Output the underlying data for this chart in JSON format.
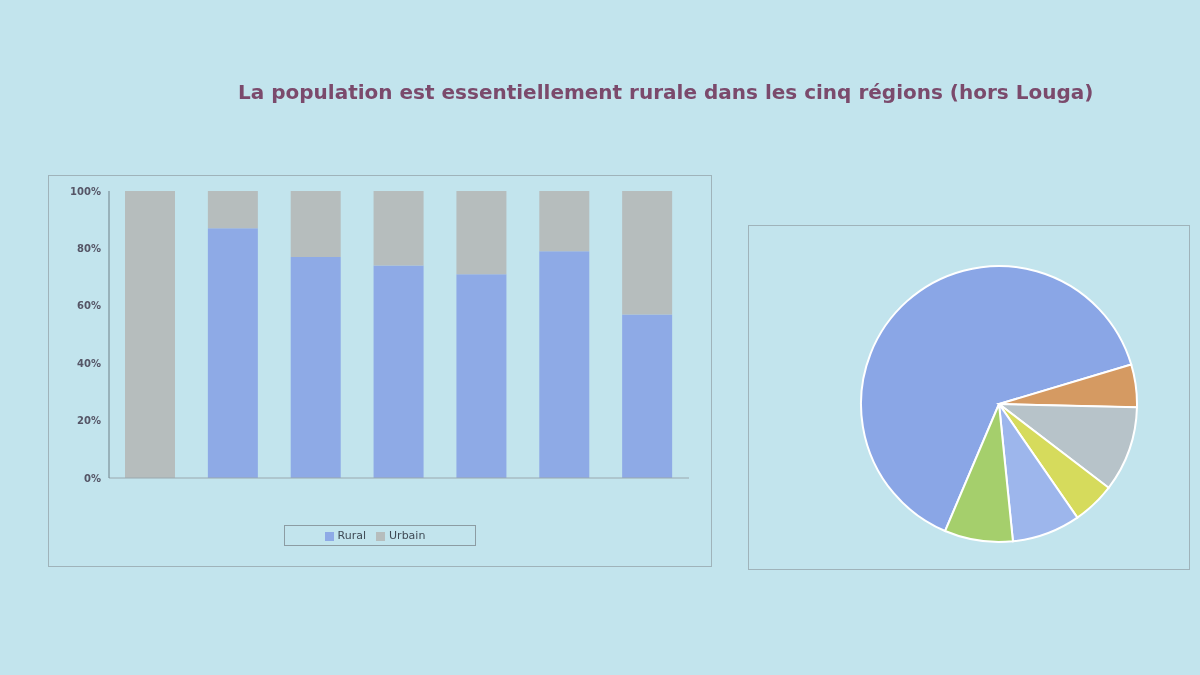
{
  "chart_data": [
    {
      "type": "bar",
      "title": "La population est essentiellement rurale dans les cinq régions (hors Louga)",
      "stacked": true,
      "categories": [
        null,
        null,
        null,
        null,
        null,
        null,
        null
      ],
      "series": [
        {
          "name": "Rural",
          "color": "#8eaae6",
          "values": [
            0,
            87,
            77,
            74,
            71,
            79,
            57
          ]
        },
        {
          "name": "Urbain",
          "color": "#b6bdbd",
          "values": [
            100,
            13,
            23,
            26,
            29,
            21,
            43
          ]
        }
      ],
      "ylim": [
        0,
        100
      ],
      "yticks": [
        {
          "value": 0,
          "label": "0%"
        },
        {
          "value": 20,
          "label": "20%"
        },
        {
          "value": 40,
          "label": "40%"
        },
        {
          "value": 60,
          "label": "60%"
        },
        {
          "value": 80,
          "label": "80%"
        },
        {
          "value": 100,
          "label": "100%"
        }
      ],
      "legend": "bottom"
    },
    {
      "type": "pie",
      "categories": [
        null,
        null,
        null,
        null,
        null,
        null
      ],
      "values": [
        64,
        5,
        10,
        5,
        8,
        8
      ],
      "colors": [
        "#8aa6e6",
        "#d59a62",
        "#b7c3c9",
        "#d6db5c",
        "#9db6ec",
        "#a5cf6c"
      ]
    }
  ]
}
